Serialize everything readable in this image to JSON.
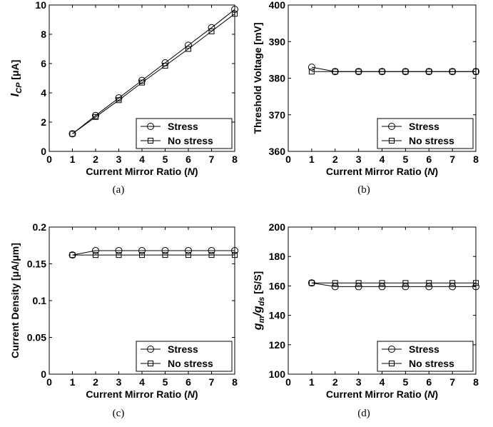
{
  "chart_data": [
    {
      "type": "line",
      "caption": "(a)",
      "ylabel": {
        "main": "I",
        "sub": "CP",
        "unit": " [μA]"
      },
      "xlabel": {
        "prefix": "Current Mirror Ratio (",
        "var": "N",
        "suffix": ")"
      },
      "xlim": [
        0,
        8
      ],
      "ylim": [
        0,
        10
      ],
      "xticks": [
        "0",
        "1",
        "2",
        "3",
        "4",
        "5",
        "6",
        "7",
        "8"
      ],
      "yticks": [
        "0",
        "2",
        "4",
        "6",
        "8",
        "10"
      ],
      "x": [
        1,
        2,
        3,
        4,
        5,
        6,
        7,
        8
      ],
      "series": [
        {
          "name": "Stress",
          "marker": "circle",
          "values": [
            1.2,
            2.45,
            3.65,
            4.85,
            6.05,
            7.25,
            8.45,
            9.7
          ]
        },
        {
          "name": "No stress",
          "marker": "square",
          "values": [
            1.2,
            2.35,
            3.5,
            4.7,
            5.85,
            7.0,
            8.2,
            9.4
          ]
        }
      ],
      "legend": "bottom-right"
    },
    {
      "type": "line",
      "caption": "(b)",
      "ylabel": {
        "main": "Threshold Voltage [mV]"
      },
      "xlabel": {
        "prefix": "Current Mirror Ratio (",
        "var": "N",
        "suffix": ")"
      },
      "xlim": [
        0,
        8
      ],
      "ylim": [
        360,
        400
      ],
      "xticks": [
        "0",
        "1",
        "2",
        "3",
        "4",
        "5",
        "6",
        "7",
        "8"
      ],
      "yticks": [
        "360",
        "370",
        "380",
        "390",
        "400"
      ],
      "x": [
        1,
        2,
        3,
        4,
        5,
        6,
        7,
        8
      ],
      "series": [
        {
          "name": "Stress",
          "marker": "circle",
          "values": [
            383,
            381.8,
            381.8,
            381.8,
            381.8,
            381.8,
            381.8,
            381.8
          ]
        },
        {
          "name": "No stress",
          "marker": "square",
          "values": [
            381.8,
            381.8,
            381.8,
            381.8,
            381.8,
            381.8,
            381.8,
            381.8
          ]
        }
      ],
      "legend": "bottom-right"
    },
    {
      "type": "line",
      "caption": "(c)",
      "ylabel": {
        "main": "Current Density [μA/μm]"
      },
      "xlabel": {
        "prefix": "Current Mirror Ratio (",
        "var": "N",
        "suffix": ")"
      },
      "xlim": [
        0,
        8
      ],
      "ylim": [
        0,
        0.2
      ],
      "xticks": [
        "0",
        "1",
        "2",
        "3",
        "4",
        "5",
        "6",
        "7",
        "8"
      ],
      "yticks": [
        "0",
        "0.05",
        "0.1",
        "0.15",
        "0.2"
      ],
      "x": [
        1,
        2,
        3,
        4,
        5,
        6,
        7,
        8
      ],
      "series": [
        {
          "name": "Stress",
          "marker": "circle",
          "values": [
            0.162,
            0.168,
            0.168,
            0.168,
            0.168,
            0.168,
            0.168,
            0.168
          ]
        },
        {
          "name": "No stress",
          "marker": "square",
          "values": [
            0.162,
            0.162,
            0.162,
            0.162,
            0.162,
            0.162,
            0.162,
            0.162
          ]
        }
      ],
      "legend": "bottom-right"
    },
    {
      "type": "line",
      "caption": "(d)",
      "ylabel": {
        "main": "g",
        "sub": "m",
        "mid": "/g",
        "sub2": "ds",
        "unit": " [S/S]"
      },
      "xlabel": {
        "prefix": "Current Mirror Ratio (",
        "var": "N",
        "suffix": ")"
      },
      "xlim": [
        0,
        8
      ],
      "ylim": [
        100,
        200
      ],
      "xticks": [
        "0",
        "1",
        "2",
        "3",
        "4",
        "5",
        "6",
        "7",
        "8"
      ],
      "yticks": [
        "100",
        "120",
        "140",
        "160",
        "180",
        "200"
      ],
      "x": [
        1,
        2,
        3,
        4,
        5,
        6,
        7,
        8
      ],
      "series": [
        {
          "name": "Stress",
          "marker": "circle",
          "values": [
            162,
            159.5,
            159.5,
            159.5,
            159.5,
            159.5,
            159.5,
            159.5
          ]
        },
        {
          "name": "No stress",
          "marker": "square",
          "values": [
            162,
            162,
            162,
            162,
            162,
            162,
            162,
            162
          ]
        }
      ],
      "legend": "bottom-right"
    }
  ]
}
